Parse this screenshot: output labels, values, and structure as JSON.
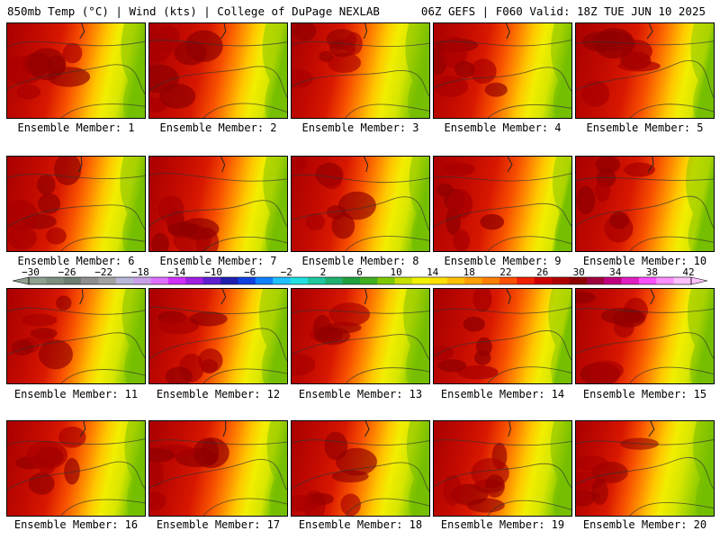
{
  "header": {
    "left": "850mb Temp (°C) | Wind (kts) | College of DuPage NEXLAB",
    "right": "06Z GEFS | F060 Valid: 18Z TUE JUN 10 2025"
  },
  "panels": [
    {
      "label": "Ensemble Member: 1",
      "warmth": 0.55
    },
    {
      "label": "Ensemble Member: 2",
      "warmth": 0.65
    },
    {
      "label": "Ensemble Member: 3",
      "warmth": 0.45
    },
    {
      "label": "Ensemble Member: 4",
      "warmth": 0.55
    },
    {
      "label": "Ensemble Member: 5",
      "warmth": 0.7
    },
    {
      "label": "Ensemble Member: 6",
      "warmth": 0.6
    },
    {
      "label": "Ensemble Member: 7",
      "warmth": 0.6
    },
    {
      "label": "Ensemble Member: 8",
      "warmth": 0.55
    },
    {
      "label": "Ensemble Member: 9",
      "warmth": 0.75
    },
    {
      "label": "Ensemble Member: 10",
      "warmth": 0.7
    },
    {
      "label": "Ensemble Member: 11",
      "warmth": 0.5
    },
    {
      "label": "Ensemble Member: 12",
      "warmth": 0.6
    },
    {
      "label": "Ensemble Member: 13",
      "warmth": 0.5
    },
    {
      "label": "Ensemble Member: 14",
      "warmth": 0.75
    },
    {
      "label": "Ensemble Member: 15",
      "warmth": 0.6
    },
    {
      "label": "Ensemble Member: 16",
      "warmth": 0.55
    },
    {
      "label": "Ensemble Member: 17",
      "warmth": 0.6
    },
    {
      "label": "Ensemble Member: 18",
      "warmth": 0.5
    },
    {
      "label": "Ensemble Member: 19",
      "warmth": 0.5
    },
    {
      "label": "Ensemble Member: 20",
      "warmth": 0.35
    }
  ],
  "colorbar": {
    "tick_labels": [
      "-30",
      "-26",
      "-22",
      "-18",
      "-14",
      "-10",
      "-6",
      "-2",
      "2",
      "6",
      "10",
      "14",
      "18",
      "22",
      "26",
      "30",
      "34",
      "38",
      "42"
    ],
    "colors": [
      "#8fa08f",
      "#7f8f7f",
      "#6f7f6f",
      "#8f8f8f",
      "#a3a3a3",
      "#b8b8d8",
      "#c8a0e8",
      "#e070ff",
      "#d030ff",
      "#a020e0",
      "#6020d0",
      "#2020b0",
      "#1040e0",
      "#1080ff",
      "#20c0ff",
      "#20e0e0",
      "#20c8a0",
      "#20b070",
      "#20a040",
      "#40b020",
      "#80c800",
      "#c8e000",
      "#f0f000",
      "#ffe000",
      "#ffc000",
      "#ffa000",
      "#ff8000",
      "#ff5000",
      "#f02000",
      "#d00000",
      "#b00000",
      "#900000",
      "#a00040",
      "#c00080",
      "#e020c0",
      "#ff50ff",
      "#ff90ff",
      "#ffc0ff"
    ]
  }
}
